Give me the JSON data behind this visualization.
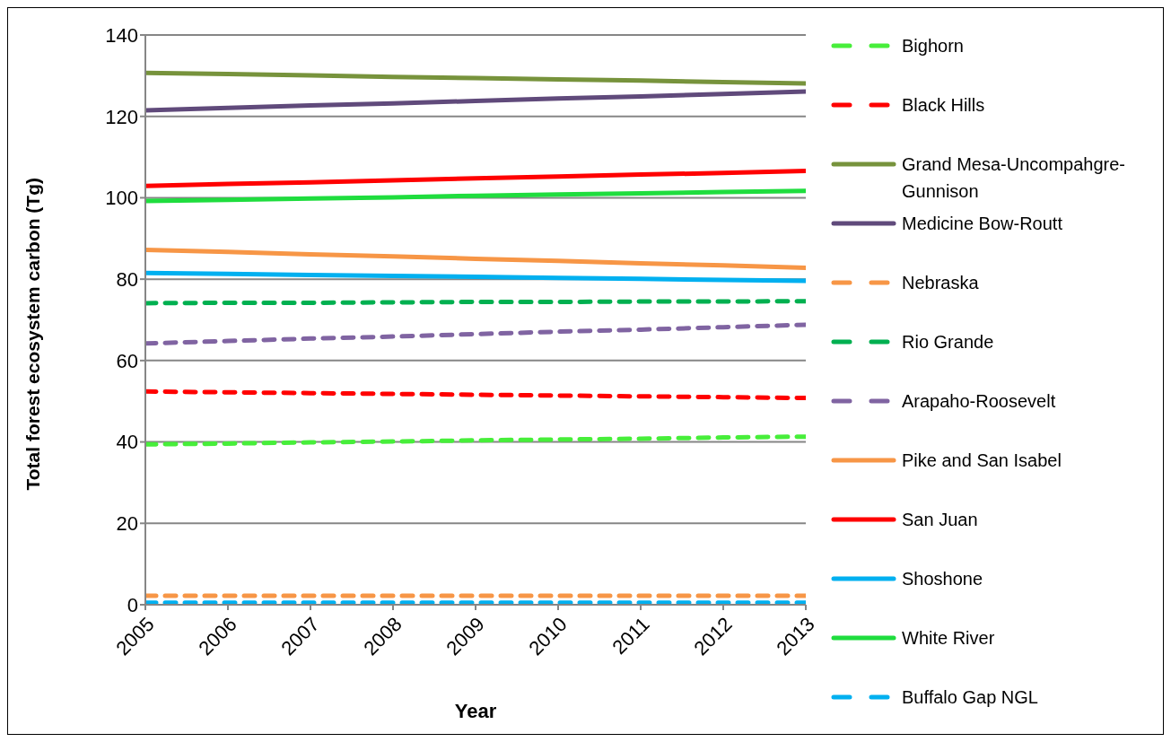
{
  "chart_data": {
    "type": "line",
    "xlabel": "Year",
    "ylabel": "Total forest ecosystem carbon (Tg)",
    "x": [
      2005,
      2006,
      2007,
      2008,
      2009,
      2010,
      2011,
      2012,
      2013
    ],
    "xlim": [
      2005,
      2013
    ],
    "xticks": [
      2005,
      2006,
      2007,
      2008,
      2009,
      2010,
      2011,
      2012,
      2013
    ],
    "ylim": [
      0,
      140
    ],
    "yticks": [
      0,
      20,
      40,
      60,
      80,
      100,
      120,
      140
    ],
    "grid": "y",
    "legend": "right",
    "marker": "none",
    "series": [
      {
        "name": "Bighorn",
        "color": "#47ee3a",
        "line_style": "dashed",
        "values": [
          39.4,
          39.6,
          39.9,
          40.1,
          40.4,
          40.6,
          40.8,
          41.1,
          41.3
        ]
      },
      {
        "name": "Black Hills",
        "color": "#ff0000",
        "line_style": "dashed",
        "values": [
          52.4,
          52.2,
          52.0,
          51.8,
          51.6,
          51.4,
          51.2,
          51.0,
          50.8
        ]
      },
      {
        "name": "Grand Mesa-Uncompahgre-Gunnison",
        "color": "#77933c",
        "line_style": "solid",
        "values": [
          130.7,
          130.4,
          130.1,
          129.7,
          129.4,
          129.1,
          128.8,
          128.4,
          128.1
        ]
      },
      {
        "name": "Medicine Bow-Routt",
        "color": "#604a7b",
        "line_style": "solid",
        "values": [
          121.5,
          122.1,
          122.7,
          123.2,
          123.8,
          124.4,
          124.9,
          125.5,
          126.1
        ]
      },
      {
        "name": "Nebraska",
        "color": "#f79646",
        "line_style": "dashed",
        "values": [
          2.2,
          2.2,
          2.2,
          2.2,
          2.2,
          2.2,
          2.2,
          2.2,
          2.2
        ]
      },
      {
        "name": "Rio Grande",
        "color": "#00b050",
        "line_style": "dashed",
        "values": [
          74.1,
          74.2,
          74.2,
          74.3,
          74.4,
          74.4,
          74.5,
          74.5,
          74.6
        ]
      },
      {
        "name": "Arapaho-Roosevelt",
        "color": "#8064a2",
        "line_style": "dashed",
        "values": [
          64.2,
          64.8,
          65.4,
          65.9,
          66.5,
          67.1,
          67.6,
          68.2,
          68.8
        ]
      },
      {
        "name": "Pike and San Isabel",
        "color": "#f79646",
        "line_style": "solid",
        "values": [
          87.2,
          86.7,
          86.1,
          85.6,
          85.0,
          84.5,
          83.9,
          83.4,
          82.8
        ]
      },
      {
        "name": "San Juan",
        "color": "#ff0000",
        "line_style": "solid",
        "values": [
          102.9,
          103.4,
          103.8,
          104.3,
          104.8,
          105.2,
          105.7,
          106.1,
          106.6
        ]
      },
      {
        "name": "Shoshone",
        "color": "#00b0f0",
        "line_style": "solid",
        "values": [
          81.5,
          81.3,
          81.0,
          80.8,
          80.6,
          80.3,
          80.1,
          79.8,
          79.6
        ]
      },
      {
        "name": "White River",
        "color": "#1fdd3e",
        "line_style": "solid",
        "values": [
          99.2,
          99.5,
          99.8,
          100.1,
          100.5,
          100.8,
          101.1,
          101.4,
          101.7
        ]
      },
      {
        "name": "Buffalo Gap NGL",
        "color": "#00b0f0",
        "line_style": "dashed",
        "values": [
          0.5,
          0.5,
          0.5,
          0.5,
          0.5,
          0.5,
          0.5,
          0.5,
          0.5
        ]
      }
    ]
  }
}
